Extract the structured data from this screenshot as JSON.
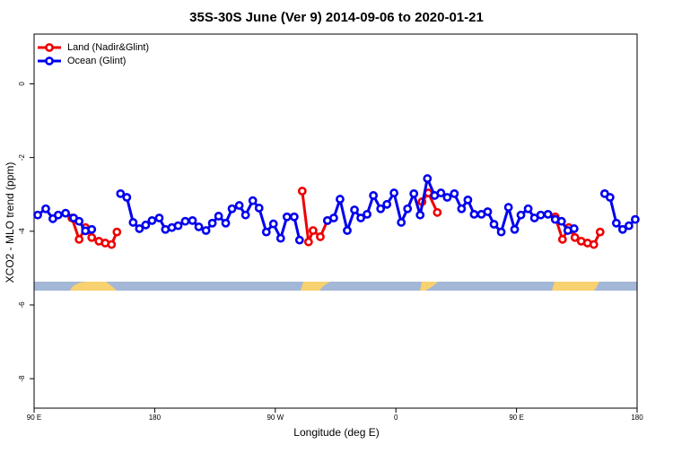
{
  "chart_data": {
    "type": "line",
    "title": "35S-30S June (Ver 9)   2014-09-06 to 2020-01-21",
    "x_label": "Longitude (deg E)",
    "y_label": "XCO2 - MLO trend (ppm)",
    "xlim": [
      90,
      540
    ],
    "xticks": [
      {
        "value": 90,
        "label": "90 E"
      },
      {
        "value": 180,
        "label": "180"
      },
      {
        "value": 270,
        "label": "90 W"
      },
      {
        "value": 360,
        "label": "0"
      },
      {
        "value": 450,
        "label": "90 E"
      },
      {
        "value": 540,
        "label": "180"
      }
    ],
    "ylim": [
      -8.8,
      1.35
    ],
    "yticks": [
      0,
      -2,
      -4,
      -6,
      -8
    ],
    "legend": "top-left",
    "series": [
      {
        "name": "Land (Nadir&Glint)",
        "color": "#ee0000",
        "x": [
          118.2,
          123.6,
          128.3,
          133,
          138.4,
          143.1,
          147.8,
          151.8,
          219,
          290.1,
          294.8,
          298.2,
          303.6,
          308.9,
          346.5,
          379.5,
          384.2,
          390.9,
          433.9,
          478.9,
          484.3,
          489,
          493.6,
          498.3,
          503,
          507.7,
          512.4
        ],
        "values": [
          -3.64,
          -4.22,
          -3.9,
          -4.17,
          -4.27,
          -4.32,
          -4.36,
          -4.02,
          null,
          -2.91,
          -4.29,
          -3.98,
          -4.15,
          -3.71,
          null,
          -3.2,
          -2.96,
          -3.49,
          null,
          -3.61,
          -4.22,
          -3.9,
          -4.17,
          -4.27,
          -4.32,
          -4.36,
          -4.02
        ]
      },
      {
        "name": "Ocean (Glint)",
        "color": "#0000ee",
        "x": [
          92.7,
          98.7,
          104,
          108,
          113.5,
          119.5,
          123.6,
          128.3,
          133,
          143.7,
          154.5,
          159.2,
          163.9,
          168.6,
          173.3,
          178,
          183.4,
          188,
          192.8,
          197.5,
          202.8,
          208.2,
          212.9,
          218.3,
          223,
          227.7,
          233,
          237.7,
          243.1,
          247.8,
          253.2,
          257.9,
          263.3,
          268.6,
          274,
          278.7,
          284.1,
          288.1,
          298.2,
          308.9,
          313.6,
          318.3,
          323.7,
          329.1,
          333.8,
          338.5,
          343.2,
          348.6,
          353.3,
          358.6,
          364,
          368.7,
          373.4,
          378.1,
          383.5,
          388.9,
          393.6,
          398.3,
          403.6,
          409,
          413.7,
          418.4,
          423.8,
          428.5,
          433.2,
          438.6,
          444,
          448.6,
          453.3,
          458.7,
          463.4,
          468.1,
          473.5,
          478.9,
          483.6,
          488.3,
          493,
          504.4,
          515.8,
          519.8,
          524.5,
          529.2,
          533.9,
          538.6
        ],
        "values": [
          -3.56,
          -3.39,
          -3.66,
          -3.56,
          -3.51,
          -3.64,
          -3.73,
          -3.99,
          -3.95,
          null,
          -2.98,
          -3.08,
          -3.76,
          -3.93,
          -3.83,
          -3.71,
          -3.64,
          -3.95,
          -3.9,
          -3.85,
          -3.73,
          -3.71,
          -3.88,
          -3.98,
          -3.78,
          -3.59,
          -3.78,
          -3.39,
          -3.3,
          -3.56,
          -3.17,
          -3.37,
          -4.02,
          -3.8,
          -4.19,
          -3.61,
          -3.61,
          -4.24,
          null,
          -3.71,
          -3.64,
          -3.13,
          -3.98,
          -3.42,
          -3.64,
          -3.54,
          -3.03,
          -3.39,
          -3.27,
          -2.96,
          -3.76,
          -3.39,
          -2.98,
          -3.56,
          -2.57,
          -3.03,
          -2.96,
          -3.08,
          -2.98,
          -3.39,
          -3.15,
          -3.54,
          -3.54,
          -3.47,
          -3.81,
          -4.02,
          -3.35,
          -3.95,
          -3.56,
          -3.39,
          -3.64,
          -3.56,
          -3.54,
          -3.68,
          -3.73,
          -3.98,
          -3.93,
          null,
          -2.98,
          -3.08,
          -3.78,
          -3.95,
          -3.85,
          -3.68
        ]
      }
    ]
  }
}
